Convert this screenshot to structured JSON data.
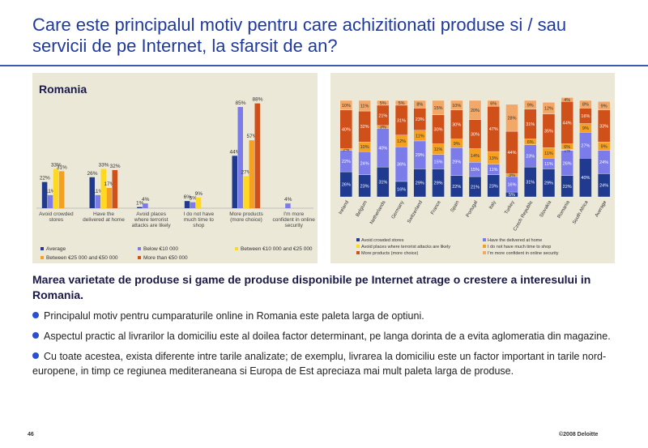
{
  "header": {
    "title": "Care este principalul motiv pentru care achizitionati produse si / sau servicii de pe Internet, la sfarsit de an?"
  },
  "chart_data": [
    {
      "type": "bar",
      "title": "Romania",
      "categories": [
        "Avoid crowded stores",
        "Have the delivered at home",
        "Avoid places where terrorist attacks are likely",
        "I do not have much time to shop",
        "More products (more choice)",
        "I'm more confident in online security"
      ],
      "series": [
        {
          "name": "Average",
          "color": "#1f3a8f",
          "values": [
            22,
            26,
            1,
            6,
            44,
            null
          ],
          "value_labels": [
            "22%",
            "26%",
            "1%",
            "6%",
            "44%",
            null
          ]
        },
        {
          "name": "Below €10 000",
          "color": "#7b7bea",
          "values": [
            11,
            11,
            4,
            5,
            85,
            4
          ],
          "value_labels": [
            "11%",
            "11%",
            "4%",
            "5%",
            "85%",
            "4%"
          ]
        },
        {
          "name": "Between €10 000 and €25 000",
          "color": "#ffd820",
          "values": [
            33,
            33,
            null,
            9,
            27,
            null
          ],
          "value_labels": [
            "33%",
            "33%",
            null,
            "9%",
            "27%",
            null
          ]
        },
        {
          "name": "Between €25 000 and €50 000",
          "color": "#f5a020",
          "values": [
            31,
            17,
            null,
            null,
            57,
            null
          ],
          "value_labels": [
            "31%",
            "17%",
            null,
            null,
            "57%",
            null
          ]
        },
        {
          "name": "More than €50 000",
          "color": "#d0501a",
          "values": [
            null,
            32,
            null,
            null,
            88,
            null
          ],
          "value_labels": [
            null,
            "32%",
            null,
            null,
            "88%",
            null
          ]
        }
      ],
      "ylim": [
        0,
        100
      ]
    },
    {
      "type": "stacked_bar",
      "categories": [
        "Ireland",
        "Belgium",
        "Netherlands",
        "Germany",
        "Switzerland",
        "France",
        "Spain",
        "Portugal",
        "Italy",
        "Turkey",
        "Czech Republic",
        "Slovakia",
        "Romania",
        "South Africa",
        "Average"
      ],
      "series": [
        {
          "name": "Avoid crowded stores",
          "color": "#1f3a8f",
          "values": [
            26,
            23,
            31,
            16,
            29,
            29,
            22,
            21,
            23,
            5,
            31,
            29,
            22,
            40,
            24
          ],
          "value_labels": [
            "26%",
            "23%",
            "31%",
            "16%",
            "29%",
            "29%",
            "22%",
            "21%",
            "23%",
            "5%",
            "31%",
            "29%",
            "22%",
            "40%",
            "24%"
          ]
        },
        {
          "name": "Have the delivered at home",
          "color": "#7b7bea",
          "values": [
            22,
            24,
            40,
            36,
            29,
            15,
            29,
            15,
            11,
            16,
            23,
            11,
            26,
            27,
            24
          ],
          "value_labels": [
            "22%",
            "24%",
            "40%",
            "36%",
            "29%",
            "15%",
            "29%",
            "15%",
            "11%",
            "16%",
            "23%",
            "11%",
            "26%",
            "27%",
            "24%"
          ]
        },
        {
          "name": "Avoid places where terrorist attacks are likely",
          "color": "#ffd820",
          "values": [
            null,
            null,
            null,
            null,
            null,
            null,
            null,
            null,
            null,
            null,
            null,
            null,
            1,
            null,
            null
          ],
          "value_labels": [
            null,
            null,
            null,
            null,
            null,
            null,
            null,
            null,
            null,
            null,
            null,
            null,
            "1%",
            null,
            null
          ]
        },
        {
          "name": "I do not have much time to shop",
          "color": "#f5a020",
          "values": [
            2,
            10,
            3,
            12,
            11,
            11,
            9,
            14,
            13,
            3,
            6,
            11,
            6,
            9,
            9
          ],
          "value_labels": [
            "2%",
            "10%",
            "3%",
            "12%",
            "11%",
            "11%",
            "9%",
            "14%",
            "13%",
            "3%",
            "6%",
            "11%",
            "6%",
            "9%",
            "9%"
          ]
        },
        {
          "name": "More products (more choice)",
          "color": "#d0501a",
          "values": [
            40,
            32,
            21,
            31,
            23,
            30,
            30,
            30,
            47,
            44,
            31,
            35,
            44,
            16,
            33
          ],
          "value_labels": [
            "40%",
            "32%",
            "21%",
            "31%",
            "23%",
            "30%",
            "30%",
            "30%",
            "47%",
            "44%",
            "31%",
            "35%",
            "44%",
            "16%",
            "33%"
          ]
        },
        {
          "name": "I'm more confident in online security",
          "color": "#f2a868",
          "values": [
            10,
            11,
            5,
            5,
            8,
            15,
            10,
            20,
            6,
            28,
            9,
            12,
            4,
            8,
            9
          ],
          "value_labels": [
            "10%",
            "11%",
            "5%",
            "5%",
            "8%",
            "15%",
            "10%",
            "20%",
            "6%",
            "28%",
            "9%",
            "12%",
            "4%",
            "8%",
            "9%"
          ]
        }
      ],
      "ylim": [
        0,
        105
      ]
    }
  ],
  "body": {
    "heading": "Marea varietate de produse si game de produse disponibile pe Internet atrage o crestere a interesului in Romania.",
    "bullets": [
      "Principalul motiv pentru cumparaturile online in Romania este paleta larga de optiuni.",
      "Aspectul practic al livrarilor la domiciliu este al doilea factor determinant, pe langa dorinta de a evita aglomeratia din magazine.",
      "Cu toate acestea, exista diferente intre tarile analizate; de exemplu, livrarea la domiciliu este un factor important in tarile nord-europene, in timp ce regiunea mediteraneana si Europa de Est apreciaza mai mult paleta larga de produse."
    ]
  },
  "footer": {
    "page": "46",
    "copyright": "©2008 Deloitte"
  }
}
